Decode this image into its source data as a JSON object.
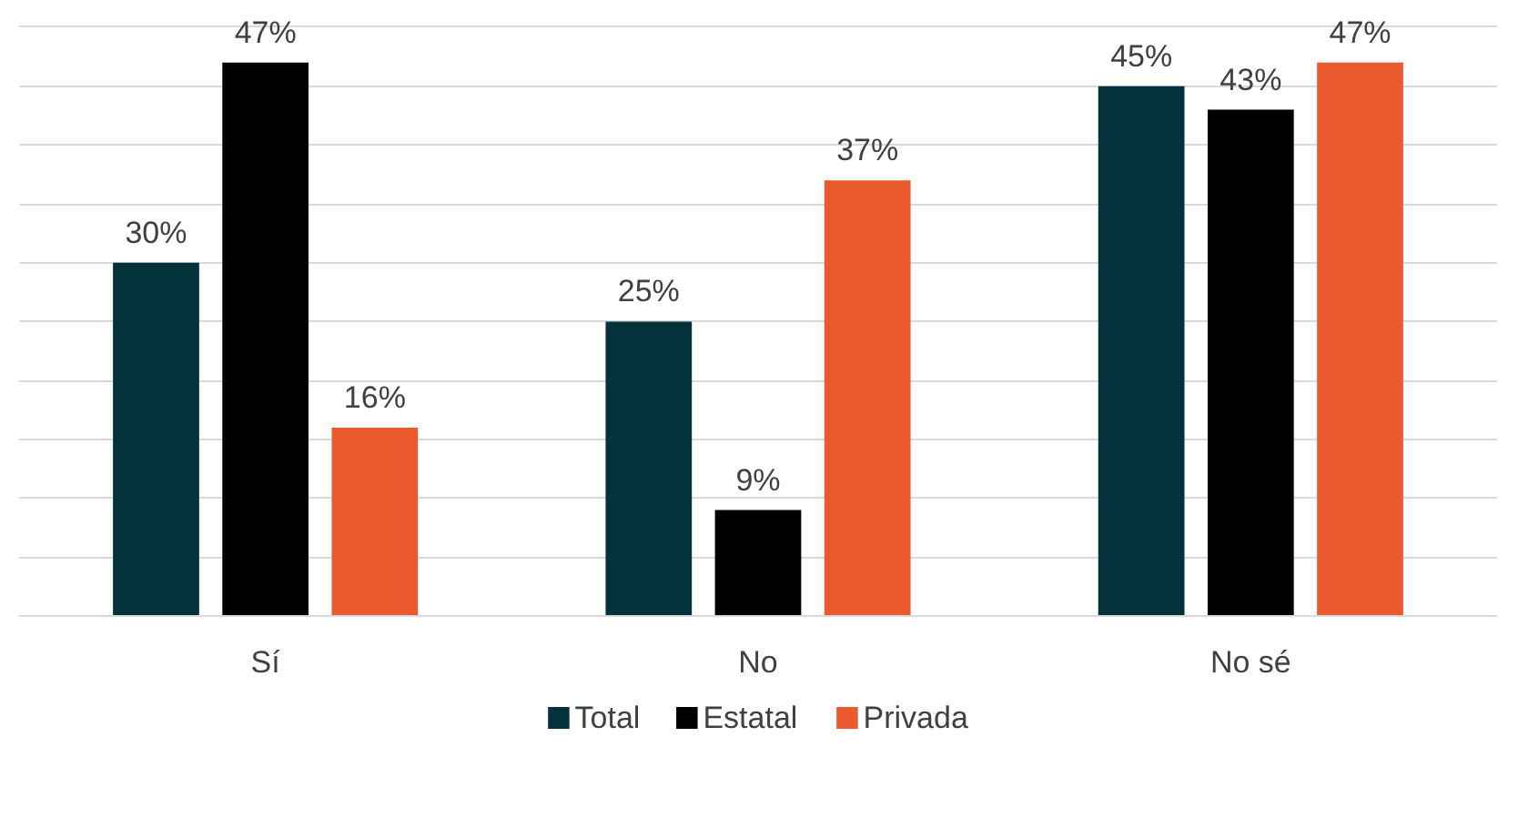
{
  "chart_data": {
    "type": "bar",
    "categories": [
      "Sí",
      "No",
      "No sé"
    ],
    "series": [
      {
        "name": "Total",
        "color": "#04323a",
        "values": [
          30,
          25,
          45
        ],
        "value_labels": [
          "30%",
          "25%",
          "45%"
        ]
      },
      {
        "name": "Estatal",
        "color": "#000000",
        "values": [
          47,
          9,
          43
        ],
        "value_labels": [
          "47%",
          "9%",
          "43%"
        ]
      },
      {
        "name": "Privada",
        "color": "#e95a2f",
        "values": [
          16,
          37,
          47
        ],
        "value_labels": [
          "16%",
          "37%",
          "47%"
        ]
      }
    ],
    "ylim": [
      0,
      50
    ],
    "yticks": [
      {
        "value": 0,
        "label": null
      },
      {
        "value": 5,
        "label": null
      },
      {
        "value": 10,
        "label": null
      },
      {
        "value": 15,
        "label": null
      },
      {
        "value": 20,
        "label": null
      },
      {
        "value": 25,
        "label": null
      },
      {
        "value": 30,
        "label": null
      },
      {
        "value": 35,
        "label": null
      },
      {
        "value": 40,
        "label": null
      },
      {
        "value": 45,
        "label": null
      },
      {
        "value": 50,
        "label": null
      }
    ],
    "tick_labels": "x",
    "grid": "y",
    "legend": "bottom"
  }
}
